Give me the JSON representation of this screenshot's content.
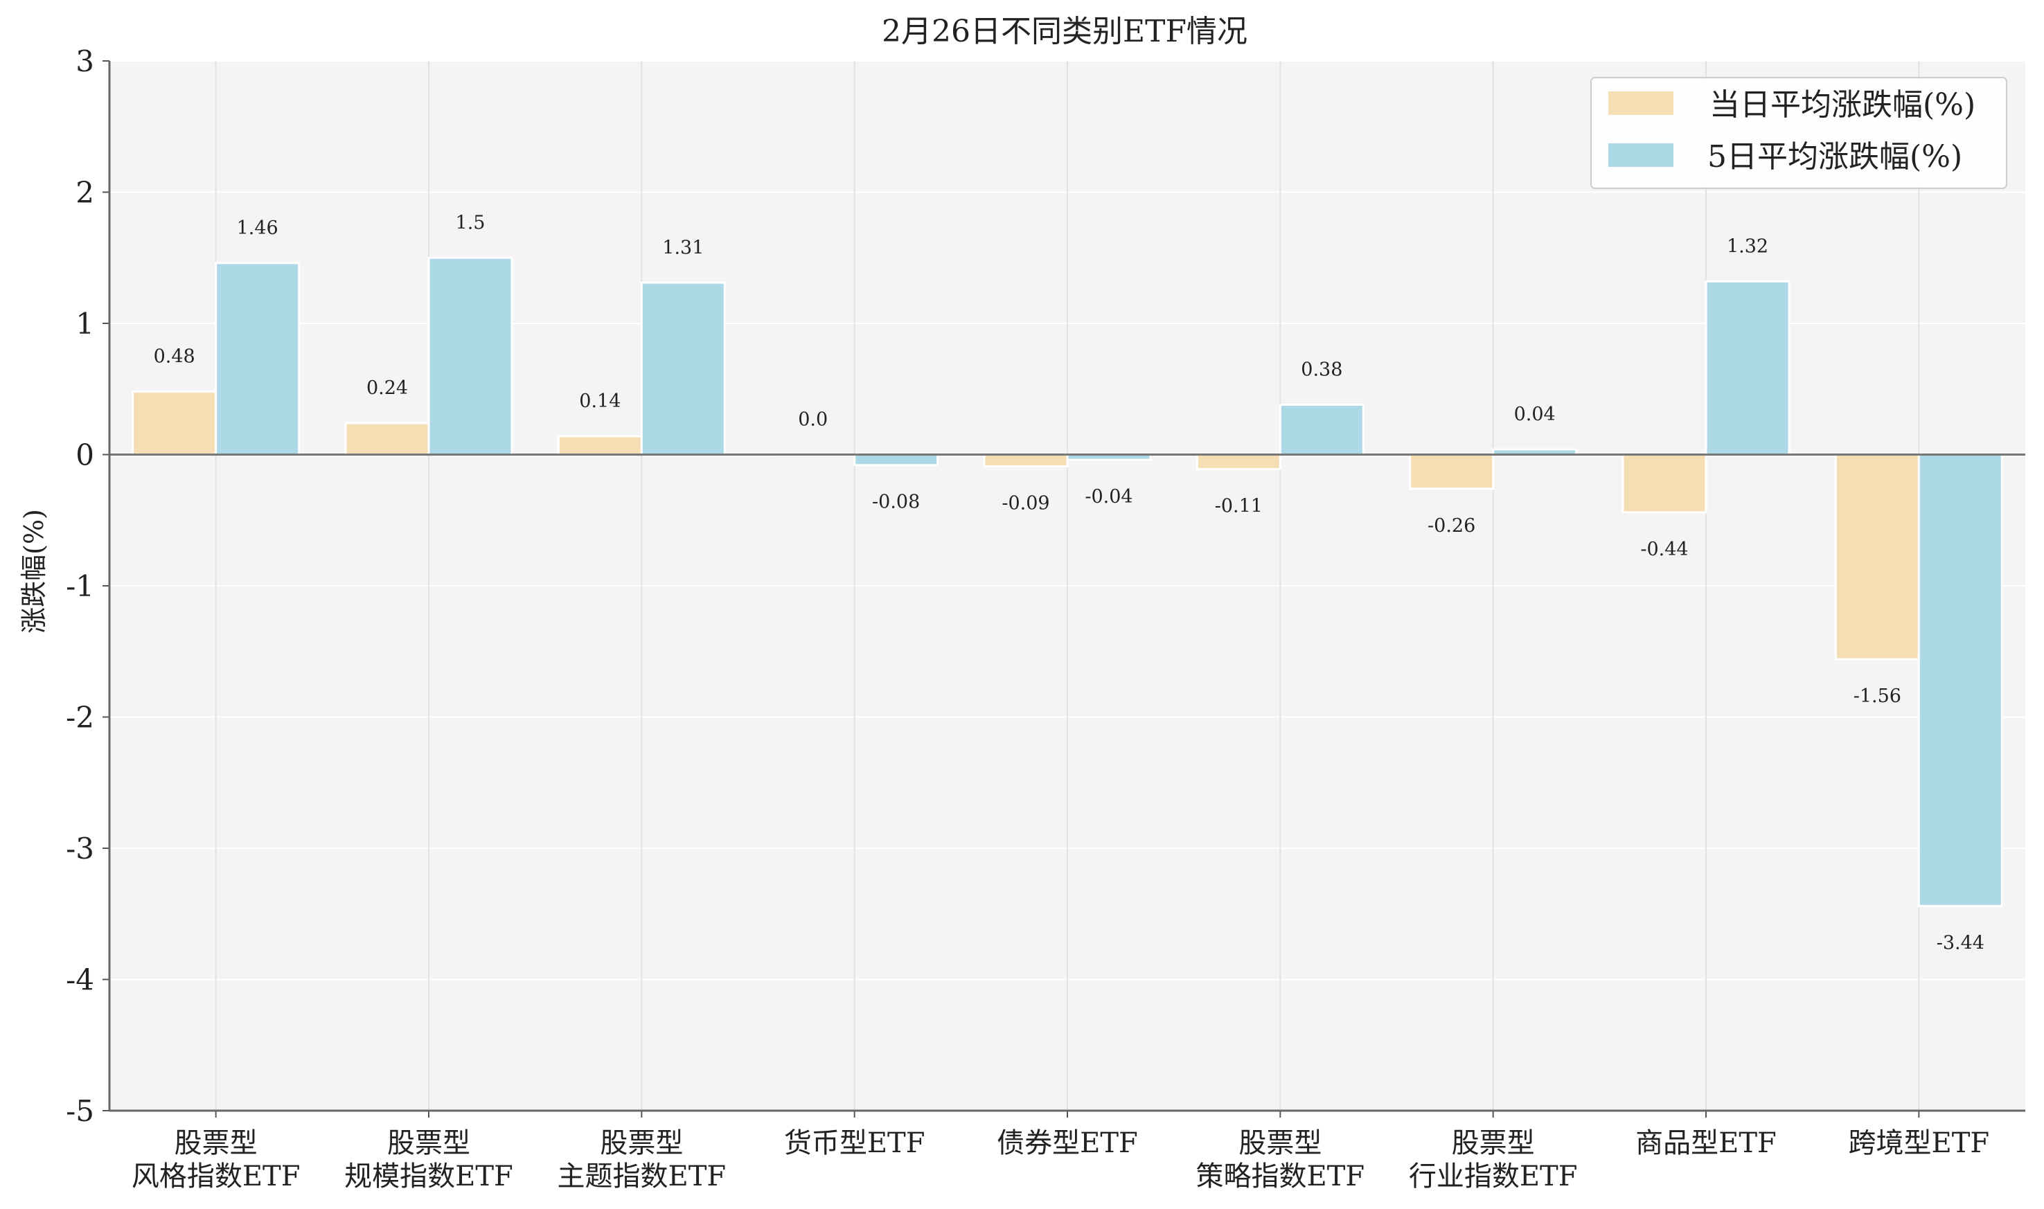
{
  "chart_data": {
    "type": "bar",
    "title": "2月26日不同类别ETF情况",
    "xlabel": "",
    "ylabel": "涨跌幅(%)",
    "ylim": [
      -5,
      3
    ],
    "yticks": [
      "3",
      "2",
      "1",
      "0",
      "-1",
      "-2",
      "-3",
      "-4",
      "-5"
    ],
    "grid": true,
    "legend_position": "top-right",
    "categories": [
      [
        "股票型",
        "风格指数ETF"
      ],
      [
        "股票型",
        "规模指数ETF"
      ],
      [
        "股票型",
        "主题指数ETF"
      ],
      [
        "货币型ETF"
      ],
      [
        "债券型ETF"
      ],
      [
        "股票型",
        "策略指数ETF"
      ],
      [
        "股票型",
        "行业指数ETF"
      ],
      [
        "商品型ETF"
      ],
      [
        "跨境型ETF"
      ]
    ],
    "series": [
      {
        "name": "当日平均涨跌幅(%)",
        "color": "#f5deb3",
        "values": [
          0.48,
          0.24,
          0.14,
          0.0,
          -0.09,
          -0.11,
          -0.26,
          -0.44,
          -1.56
        ],
        "labels": [
          "0.48",
          "0.24",
          "0.14",
          "0.0",
          "-0.09",
          "-0.11",
          "-0.26",
          "-0.44",
          "-1.56"
        ]
      },
      {
        "name": "5日平均涨跌幅(%)",
        "color": "#add8e6",
        "values": [
          1.46,
          1.5,
          1.31,
          -0.08,
          -0.04,
          0.38,
          0.04,
          1.32,
          -3.44
        ],
        "labels": [
          "1.46",
          "1.5",
          "1.31",
          "-0.08",
          "-0.04",
          "0.38",
          "0.04",
          "1.32",
          "-3.44"
        ]
      }
    ]
  }
}
